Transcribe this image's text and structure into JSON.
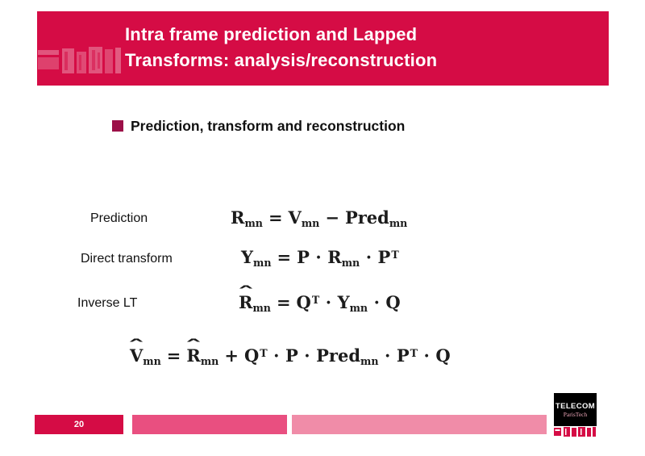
{
  "slide": {
    "header": {
      "title_line1": "Intra frame prediction and Lapped",
      "title_line2": "Transforms: analysis/reconstruction"
    },
    "bullet": {
      "text": "Prediction, transform and reconstruction"
    },
    "rows": [
      {
        "label": "Prediction"
      },
      {
        "label": "Direct transform"
      },
      {
        "label": "Inverse LT"
      }
    ],
    "equations": {
      "prediction": [
        {
          "v": "R",
          "sub": "mn"
        },
        {
          "op": "="
        },
        {
          "v": "V",
          "sub": "mn"
        },
        {
          "op": "−"
        },
        {
          "v": "Pred",
          "sub": "mn"
        }
      ],
      "direct_transform": [
        {
          "v": "Y",
          "sub": "mn"
        },
        {
          "op": "="
        },
        {
          "v": "P"
        },
        {
          "op": "⋅"
        },
        {
          "v": "R",
          "sub": "mn"
        },
        {
          "op": "⋅"
        },
        {
          "v": "P",
          "sup": "T"
        }
      ],
      "inverse_lt": [
        {
          "v": "R",
          "hat": true,
          "sub": "mn"
        },
        {
          "op": "="
        },
        {
          "v": "Q",
          "sup": "T"
        },
        {
          "op": "⋅"
        },
        {
          "v": "Y",
          "sub": "mn"
        },
        {
          "op": "⋅"
        },
        {
          "v": "Q"
        }
      ],
      "reconstruction": [
        {
          "v": "V",
          "hat": true,
          "sub": "mn"
        },
        {
          "op": "="
        },
        {
          "v": "R",
          "hat": true,
          "sub": "mn"
        },
        {
          "op": "+"
        },
        {
          "v": "Q",
          "sup": "T"
        },
        {
          "op": "⋅"
        },
        {
          "v": "P"
        },
        {
          "op": "⋅"
        },
        {
          "v": "Pred",
          "sub": "mn"
        },
        {
          "op": "⋅"
        },
        {
          "v": "P",
          "sup": "T"
        },
        {
          "op": "⋅"
        },
        {
          "v": "Q"
        }
      ]
    },
    "footer": {
      "page_number": "20",
      "logo_line1": "TELECOM",
      "logo_line2": "ParisTech"
    },
    "colors": {
      "primary_red": "#D50C45",
      "bar_medium_pink": "#E94F80",
      "bar_light_pink": "#F08CA8",
      "bullet_maroon": "#9C1048",
      "logo_black": "#000000",
      "title_white": "#FFFFFF"
    }
  }
}
